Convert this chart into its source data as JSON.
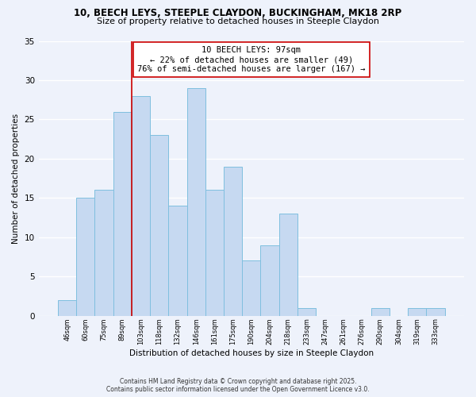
{
  "title1": "10, BEECH LEYS, STEEPLE CLAYDON, BUCKINGHAM, MK18 2RP",
  "title2": "Size of property relative to detached houses in Steeple Claydon",
  "bar_labels": [
    "46sqm",
    "60sqm",
    "75sqm",
    "89sqm",
    "103sqm",
    "118sqm",
    "132sqm",
    "146sqm",
    "161sqm",
    "175sqm",
    "190sqm",
    "204sqm",
    "218sqm",
    "233sqm",
    "247sqm",
    "261sqm",
    "276sqm",
    "290sqm",
    "304sqm",
    "319sqm",
    "333sqm"
  ],
  "bar_values": [
    2,
    15,
    16,
    26,
    28,
    23,
    14,
    29,
    16,
    19,
    7,
    9,
    13,
    1,
    0,
    0,
    0,
    1,
    0,
    1,
    1
  ],
  "bar_color": "#c6d9f1",
  "bar_edgecolor": "#7fbfdf",
  "vline_x_index": 3.5,
  "vline_color": "#cc0000",
  "marker_label_line1": "10 BEECH LEYS: 97sqm",
  "marker_label_line2": "← 22% of detached houses are smaller (49)",
  "marker_label_line3": "76% of semi-detached houses are larger (167) →",
  "xlabel": "Distribution of detached houses by size in Steeple Claydon",
  "ylabel": "Number of detached properties",
  "ylim": [
    0,
    35
  ],
  "yticks": [
    0,
    5,
    10,
    15,
    20,
    25,
    30,
    35
  ],
  "footnote1": "Contains HM Land Registry data © Crown copyright and database right 2025.",
  "footnote2": "Contains public sector information licensed under the Open Government Licence v3.0.",
  "bg_color": "#eef2fb",
  "grid_color": "#ffffff",
  "annotation_box_facecolor": "#ffffff",
  "annotation_box_edgecolor": "#cc0000",
  "title1_fontsize": 8.5,
  "title2_fontsize": 8.0,
  "xlabel_fontsize": 7.5,
  "ylabel_fontsize": 7.5,
  "ytick_fontsize": 7.5,
  "xtick_fontsize": 6.0,
  "annotation_fontsize": 7.5,
  "footnote_fontsize": 5.5
}
